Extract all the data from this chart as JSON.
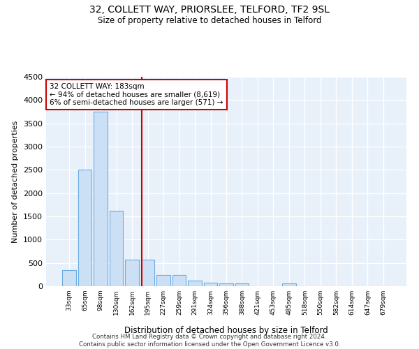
{
  "title1": "32, COLLETT WAY, PRIORSLEE, TELFORD, TF2 9SL",
  "title2": "Size of property relative to detached houses in Telford",
  "xlabel": "Distribution of detached houses by size in Telford",
  "ylabel": "Number of detached properties",
  "categories": [
    "33sqm",
    "65sqm",
    "98sqm",
    "130sqm",
    "162sqm",
    "195sqm",
    "227sqm",
    "259sqm",
    "291sqm",
    "324sqm",
    "356sqm",
    "388sqm",
    "421sqm",
    "453sqm",
    "485sqm",
    "518sqm",
    "550sqm",
    "582sqm",
    "614sqm",
    "647sqm",
    "679sqm"
  ],
  "values": [
    350,
    2500,
    3750,
    1625,
    575,
    575,
    235,
    235,
    115,
    75,
    55,
    55,
    0,
    0,
    55,
    0,
    0,
    0,
    0,
    0,
    0
  ],
  "bar_color": "#cce0f5",
  "bar_edge_color": "#6aade4",
  "vline_color": "#cc0000",
  "annotation_text": "32 COLLETT WAY: 183sqm\n← 94% of detached houses are smaller (8,619)\n6% of semi-detached houses are larger (571) →",
  "annotation_box_color": "#cc0000",
  "ylim": [
    0,
    4500
  ],
  "yticks": [
    0,
    500,
    1000,
    1500,
    2000,
    2500,
    3000,
    3500,
    4000,
    4500
  ],
  "footer_text": "Contains HM Land Registry data © Crown copyright and database right 2024.\nContains public sector information licensed under the Open Government Licence v3.0.",
  "bg_color": "#e8f0fa",
  "grid_color": "#ffffff",
  "title1_fontsize": 10,
  "title2_fontsize": 9
}
